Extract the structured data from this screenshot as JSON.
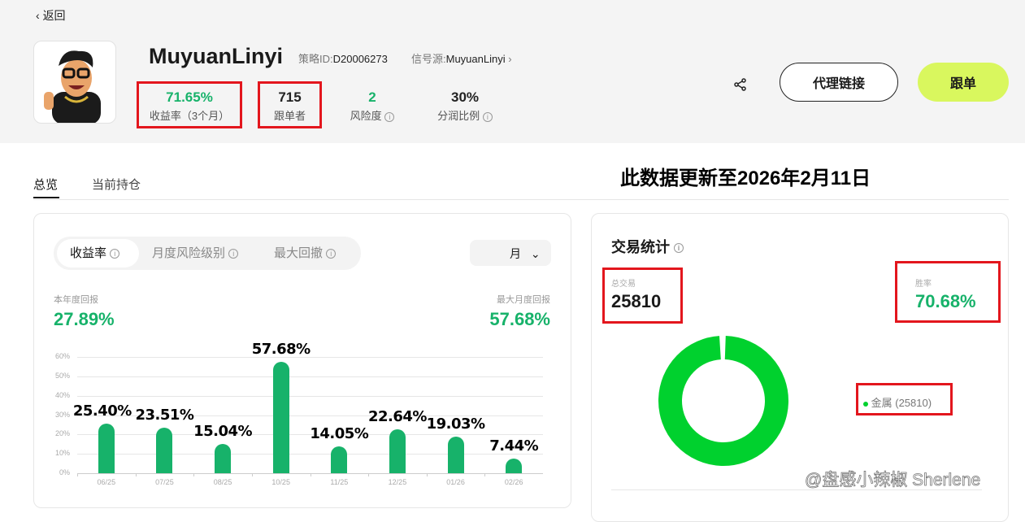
{
  "header": {
    "back_label": "返回",
    "name": "MuyuanLinyi",
    "strategy_id_label": "策略ID:",
    "strategy_id": "D20006273",
    "signal_label": "信号源:",
    "signal_source": "MuyuanLinyi",
    "stats": [
      {
        "value": "71.65%",
        "label": "收益率（3个月）"
      },
      {
        "value": "715",
        "label": "跟单者"
      },
      {
        "value": "2",
        "label": "风险度"
      },
      {
        "value": "30%",
        "label": "分润比例"
      }
    ],
    "agent_link_label": "代理链接",
    "follow_label": "跟单"
  },
  "tabs": [
    {
      "label": "总览",
      "active": true
    },
    {
      "label": "当前持仓",
      "active": false
    }
  ],
  "notice": "此数据更新至2026年2月11日",
  "returns_card": {
    "segments": [
      "收益率",
      "月度风险级别",
      "最大回撤"
    ],
    "period": "月",
    "ytd_label": "本年度回报",
    "ytd_value": "27.89%",
    "max_label": "最大月度回报",
    "max_value": "57.68%"
  },
  "chart_data": {
    "type": "bar",
    "categories": [
      "06/25",
      "07/25",
      "08/25",
      "10/25",
      "11/25",
      "12/25",
      "01/26",
      "02/26"
    ],
    "values": [
      25.4,
      23.51,
      15.04,
      57.68,
      14.05,
      22.64,
      19.03,
      7.44
    ],
    "data_labels": [
      "25.40%",
      "23.51%",
      "15.04%",
      "57.68%",
      "14.05%",
      "22.64%",
      "19.03%",
      "7.44%"
    ],
    "yticks": [
      "0%",
      "10%",
      "20%",
      "30%",
      "40%",
      "50%",
      "60%"
    ],
    "ylim": [
      0,
      60
    ],
    "grid": true,
    "color": "#17b26a"
  },
  "trade_stats": {
    "title": "交易统计",
    "total_label": "总交易",
    "total_value": "25810",
    "winrate_label": "胜率",
    "winrate_value": "70.68%",
    "legend": [
      {
        "label": "金属 (25810)",
        "value": 25810,
        "color": "#00d12e"
      }
    ]
  },
  "watermark": "@盘感小辣椒 Sherlene",
  "colors": {
    "accent": "#17b26a",
    "follow_button": "#d9f75e",
    "highlight_box": "#e3161d",
    "donut": "#00d12e"
  }
}
